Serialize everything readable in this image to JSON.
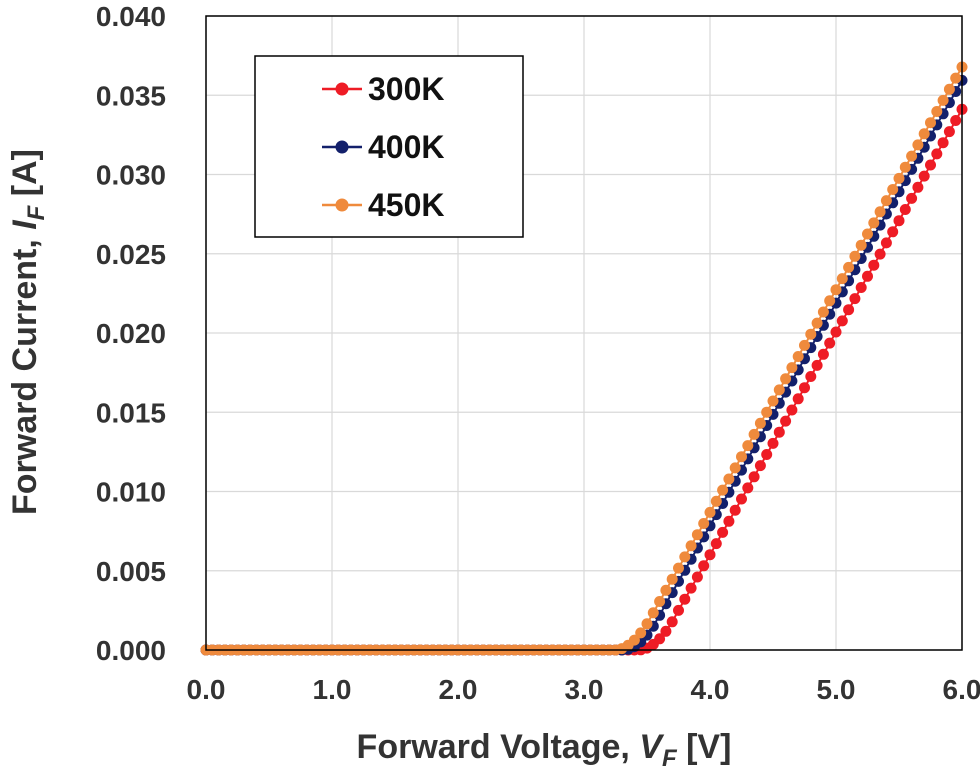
{
  "chart_data": {
    "type": "scatter",
    "xlabel": {
      "main": "Forward Voltage, ",
      "sym": "V",
      "sub": "F",
      "unit": " [V]"
    },
    "ylabel": {
      "main": "Forward Current, ",
      "sym": "I",
      "sub": "F",
      "unit": " [A]"
    },
    "xlim": [
      0,
      6
    ],
    "ylim": [
      0,
      0.04
    ],
    "x_ticks": [
      "0.0",
      "1.0",
      "2.0",
      "3.0",
      "4.0",
      "5.0",
      "6.0"
    ],
    "y_ticks": [
      "0.000",
      "0.005",
      "0.010",
      "0.015",
      "0.020",
      "0.025",
      "0.030",
      "0.035",
      "0.040"
    ],
    "grid": true,
    "legend_position": "top-left",
    "x": {
      "start": 0.0,
      "end": 6.0,
      "step": 0.05
    },
    "series": [
      {
        "name": "300K",
        "color": "#ee1c25",
        "turn_on_voltage": 3.43,
        "knee_voltage": 3.75,
        "knee_current": 0.0025,
        "slope_A_per_V": 0.01405
      },
      {
        "name": "400K",
        "color": "#13206b",
        "turn_on_voltage": 3.31,
        "knee_voltage": 3.62,
        "knee_current": 0.0025,
        "slope_A_per_V": 0.01405
      },
      {
        "name": "450K",
        "color": "#ef8a3c",
        "turn_on_voltage": 3.24,
        "knee_voltage": 3.56,
        "knee_current": 0.0025,
        "slope_A_per_V": 0.01405
      }
    ]
  }
}
